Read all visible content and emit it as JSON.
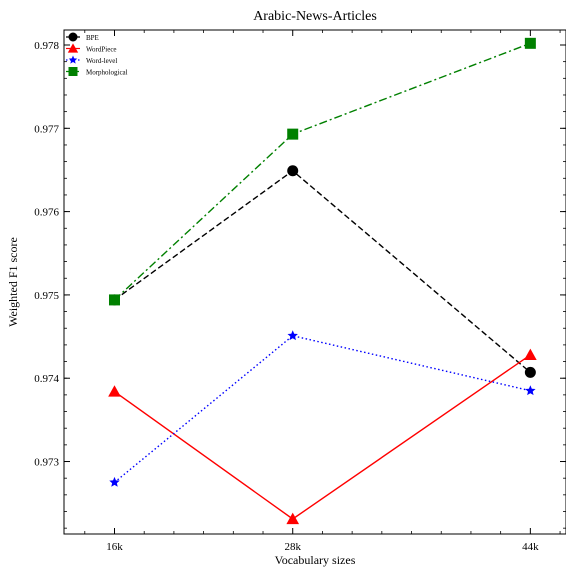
{
  "chart_data": {
    "type": "line",
    "title": "Arabic-News-Articles",
    "xlabel": "Vocabulary sizes",
    "ylabel": "Weighted F1 score",
    "categories": [
      "16k",
      "28k",
      "44k"
    ],
    "x": [
      16,
      28,
      44
    ],
    "xlim": [
      12.6,
      46.4
    ],
    "ylim": [
      0.97213,
      0.97818
    ],
    "yticks": [
      0.973,
      0.974,
      0.975,
      0.976,
      0.977,
      0.978
    ],
    "ytick_labels": [
      "0.973",
      "0.974",
      "0.975",
      "0.976",
      "0.977",
      "0.978"
    ],
    "grid": false,
    "legend_position": "top-left",
    "series": [
      {
        "name": "BPE",
        "values": [
          0.97494,
          0.97649,
          0.97407
        ],
        "color": "#000000",
        "marker": "circle",
        "linestyle": "dashed"
      },
      {
        "name": "WordPiece",
        "values": [
          0.97384,
          0.97231,
          0.97428
        ],
        "color": "#ff0000",
        "marker": "triangle",
        "linestyle": "solid"
      },
      {
        "name": "Word-level",
        "values": [
          0.97275,
          0.97451,
          0.97385
        ],
        "color": "#0000ff",
        "marker": "star",
        "linestyle": "dotted"
      },
      {
        "name": "Morphological",
        "values": [
          0.97494,
          0.97693,
          0.97802
        ],
        "color": "#008000",
        "marker": "square",
        "linestyle": "dashdot"
      }
    ]
  }
}
